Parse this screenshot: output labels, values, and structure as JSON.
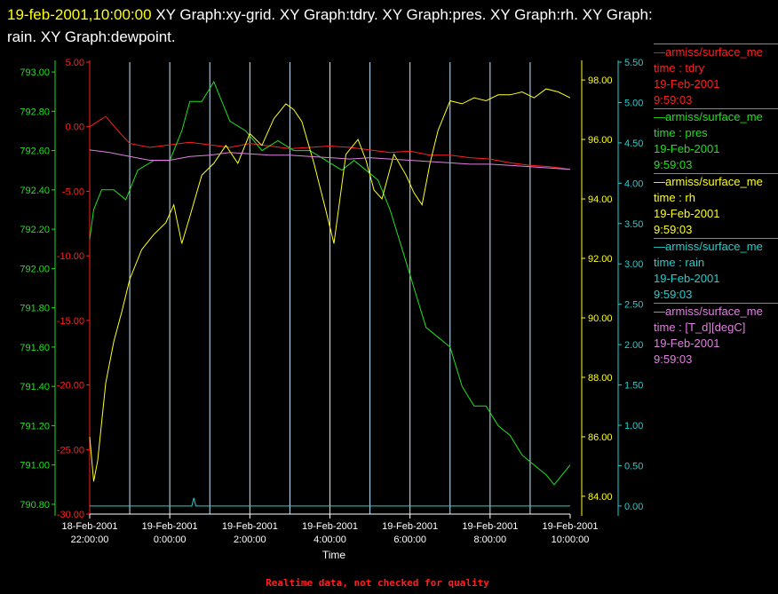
{
  "header": {
    "timestamp": "19-feb-2001,10:00:00",
    "graphs_line1": "XY Graph:xy-grid.  XY Graph:tdry.  XY Graph:pres.  XY Graph:rh.  XY Graph:",
    "graphs_line2": "rain.  XY Graph:dewpoint."
  },
  "legend": [
    {
      "source": "armiss/surface_me",
      "var": "time : tdry",
      "date": "19-Feb-2001",
      "time": "9:59:03",
      "color": "#ff2020"
    },
    {
      "source": "armiss/surface_me",
      "var": "time : pres",
      "date": "19-Feb-2001",
      "time": "9:59:03",
      "color": "#20e020"
    },
    {
      "source": "armiss/surface_me",
      "var": "time : rh",
      "date": "19-Feb-2001",
      "time": "9:59:03",
      "color": "#ffff20"
    },
    {
      "source": "armiss/surface_me",
      "var": "time : rain",
      "date": "19-Feb-2001",
      "time": "9:59:03",
      "color": "#20d0d0"
    },
    {
      "source": "armiss/surface_me",
      "var": "time : [T_d][degC]",
      "date": "19-Feb-2001",
      "time": "9:59:03",
      "color": "#e080e0"
    }
  ],
  "footer": {
    "note": "Realtime data, not checked for quality"
  },
  "chart_data": {
    "type": "line",
    "xlabel": "Time",
    "x_tick_labels": [
      [
        "18-Feb-2001",
        "22:00:00"
      ],
      [
        "19-Feb-2001",
        "0:00:00"
      ],
      [
        "19-Feb-2001",
        "2:00:00"
      ],
      [
        "19-Feb-2001",
        "4:00:00"
      ],
      [
        "19-Feb-2001",
        "6:00:00"
      ],
      [
        "19-Feb-2001",
        "8:00:00"
      ],
      [
        "19-Feb-2001",
        "10:00:00"
      ]
    ],
    "x_tick_hours": [
      22,
      24,
      26,
      28,
      30,
      32,
      34
    ],
    "xlim_hours": [
      22,
      34
    ],
    "grid": "vertical lines every hour",
    "axes": {
      "pres": {
        "color": "#20e020",
        "ylim": [
          790.75,
          793.05
        ],
        "ticks": [
          "793.00",
          "792.80",
          "792.60",
          "792.40",
          "792.20",
          "792.00",
          "791.80",
          "791.60",
          "791.40",
          "791.20",
          "791.00",
          "790.80"
        ]
      },
      "tdry": {
        "color": "#ff2020",
        "ylim": [
          -30,
          5
        ],
        "ticks": [
          "5.00",
          "0.00",
          "-5.00",
          "-10.00",
          "-15.00",
          "-20.00",
          "-25.00",
          "-30.00"
        ]
      },
      "rh": {
        "color": "#ffff20",
        "ylim": [
          83.4,
          98.6
        ],
        "ticks": [
          "98.00",
          "96.00",
          "94.00",
          "92.00",
          "90.00",
          "88.00",
          "86.00",
          "84.00"
        ]
      },
      "rain": {
        "color": "#20d0d0",
        "ylim": [
          -0.1,
          5.5
        ],
        "ticks": [
          "5.50",
          "5.00",
          "4.50",
          "4.00",
          "3.50",
          "3.00",
          "2.50",
          "2.00",
          "1.50",
          "1.00",
          "0.50",
          "0.00"
        ]
      }
    },
    "series": [
      {
        "name": "tdry",
        "axis": "tdry",
        "color": "#ff2020",
        "x": [
          22,
          22.4,
          22.7,
          23,
          23.5,
          24,
          24.5,
          25,
          25.5,
          26,
          26.5,
          27,
          27.5,
          28,
          28.5,
          29,
          29.5,
          30,
          30.5,
          31,
          31.5,
          32,
          32.5,
          33,
          33.5,
          34
        ],
        "y": [
          0,
          0.8,
          -0.3,
          -1.3,
          -1.6,
          -1.4,
          -1.2,
          -1.4,
          -1.6,
          -1.3,
          -1.5,
          -1.7,
          -1.6,
          -1.5,
          -1.6,
          -1.8,
          -2.0,
          -1.9,
          -2.2,
          -2.2,
          -2.4,
          -2.5,
          -2.8,
          -3.0,
          -3.1,
          -3.3
        ]
      },
      {
        "name": "pres",
        "axis": "pres",
        "color": "#20e020",
        "x": [
          22,
          22.1,
          22.3,
          22.6,
          22.9,
          23.2,
          23.6,
          24,
          24.3,
          24.5,
          24.8,
          25.1,
          25.5,
          25.9,
          26.3,
          26.7,
          27.1,
          27.5,
          27.9,
          28.3,
          28.6,
          28.9,
          29.2,
          29.5,
          29.8,
          30.1,
          30.4,
          30.7,
          31,
          31.3,
          31.6,
          31.9,
          32.2,
          32.5,
          32.8,
          33.1,
          33.4,
          33.6,
          33.8,
          34
        ],
        "y": [
          792.15,
          792.3,
          792.4,
          792.4,
          792.35,
          792.5,
          792.55,
          792.55,
          792.7,
          792.85,
          792.85,
          792.95,
          792.75,
          792.7,
          792.6,
          792.65,
          792.6,
          792.6,
          792.55,
          792.5,
          792.55,
          792.5,
          792.45,
          792.3,
          792.1,
          791.9,
          791.7,
          791.65,
          791.6,
          791.4,
          791.3,
          791.3,
          791.2,
          791.15,
          791.05,
          791.0,
          790.95,
          790.9,
          790.95,
          791.0
        ]
      },
      {
        "name": "rh",
        "axis": "rh",
        "color": "#ffff20",
        "x": [
          22,
          22.1,
          22.2,
          22.3,
          22.4,
          22.6,
          22.8,
          23,
          23.3,
          23.6,
          23.9,
          24.1,
          24.3,
          24.5,
          24.8,
          25.1,
          25.4,
          25.7,
          26,
          26.3,
          26.6,
          26.9,
          27.1,
          27.3,
          27.6,
          27.9,
          28.1,
          28.4,
          28.7,
          28.9,
          29.1,
          29.3,
          29.6,
          29.9,
          30.1,
          30.3,
          30.5,
          30.7,
          31,
          31.3,
          31.6,
          31.9,
          32.2,
          32.5,
          32.8,
          33.1,
          33.4,
          33.7,
          34
        ],
        "y": [
          86,
          84.5,
          85.2,
          86.5,
          87.8,
          89.2,
          90.2,
          91.3,
          92.3,
          92.8,
          93.2,
          93.8,
          92.5,
          93.4,
          94.8,
          95.2,
          95.8,
          95.2,
          96.2,
          95.8,
          96.7,
          97.2,
          97.0,
          96.6,
          95.2,
          93.6,
          92.5,
          95.5,
          96.0,
          95.3,
          94.3,
          94.0,
          95.5,
          94.8,
          94.2,
          93.8,
          95.2,
          96.3,
          97.3,
          97.2,
          97.4,
          97.3,
          97.5,
          97.5,
          97.6,
          97.4,
          97.7,
          97.6,
          97.4
        ]
      },
      {
        "name": "rain",
        "axis": "rain",
        "color": "#20d0d0",
        "x": [
          22,
          24.5,
          24.55,
          24.6,
          24.65,
          34
        ],
        "y": [
          0,
          0,
          0,
          0.1,
          0,
          0
        ]
      },
      {
        "name": "[T_d][degC]",
        "axis": "tdry",
        "color": "#e080e0",
        "x": [
          22,
          22.5,
          23,
          23.5,
          24,
          24.5,
          25,
          25.5,
          26,
          26.5,
          27,
          27.5,
          28,
          28.5,
          29,
          29.5,
          30,
          30.5,
          31,
          31.5,
          32,
          32.5,
          33,
          33.5,
          34
        ],
        "y": [
          -1.8,
          -2.0,
          -2.3,
          -2.6,
          -2.6,
          -2.3,
          -2.2,
          -2.0,
          -2.1,
          -2.2,
          -2.2,
          -2.3,
          -2.4,
          -2.5,
          -2.4,
          -2.5,
          -2.6,
          -2.7,
          -2.8,
          -2.9,
          -2.9,
          -3.0,
          -3.1,
          -3.2,
          -3.3
        ]
      }
    ]
  }
}
